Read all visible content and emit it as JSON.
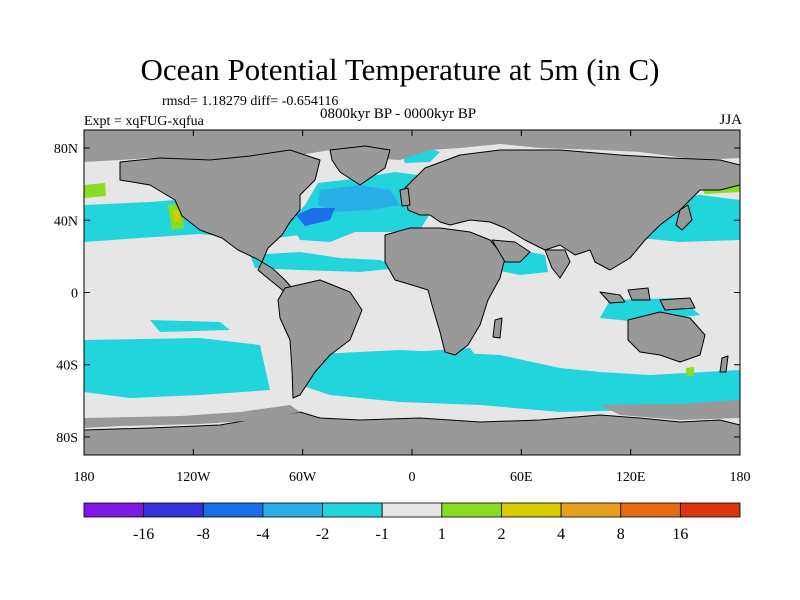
{
  "title": "Ocean Potential Temperature at 5m (in C)",
  "stats_line": "rmsd= 1.18279  diff= -0.654116",
  "period_line": "0800kyr BP - 0000kyr BP",
  "experiment_label": "Expt = xqFUG-xqfua",
  "season_label": "JJA",
  "lat_ticks": [
    {
      "label": "80N",
      "lat": 80
    },
    {
      "label": "40N",
      "lat": 40
    },
    {
      "label": "0",
      "lat": 0
    },
    {
      "label": "40S",
      "lat": -40
    },
    {
      "label": "80S",
      "lat": -80
    }
  ],
  "lon_ticks": [
    {
      "label": "180",
      "lon": -180
    },
    {
      "label": "120W",
      "lon": -120
    },
    {
      "label": "60W",
      "lon": -60
    },
    {
      "label": "0",
      "lon": 0
    },
    {
      "label": "60E",
      "lon": 60
    },
    {
      "label": "120E",
      "lon": 120
    },
    {
      "label": "180",
      "lon": 180
    }
  ],
  "colorbar": {
    "colors": [
      "#7f1ae6",
      "#3333dd",
      "#1a6ee6",
      "#2aaee8",
      "#22d4dc",
      "#e6e6e6",
      "#88dd22",
      "#d8cc00",
      "#e6a020",
      "#e66a10",
      "#dd3311"
    ],
    "labels": [
      "-16",
      "-8",
      "-4",
      "-2",
      "-1",
      "1",
      "2",
      "4",
      "8",
      "16"
    ]
  },
  "legend_colors": {
    "land": "#999999",
    "ocean_neutral": "#e6e6e6",
    "cool_light": "#22d4dc",
    "cool_mid": "#2aaee8",
    "cool_dark": "#1a6ee6",
    "warm_light": "#88dd22",
    "warm_mid": "#d8cc00"
  }
}
